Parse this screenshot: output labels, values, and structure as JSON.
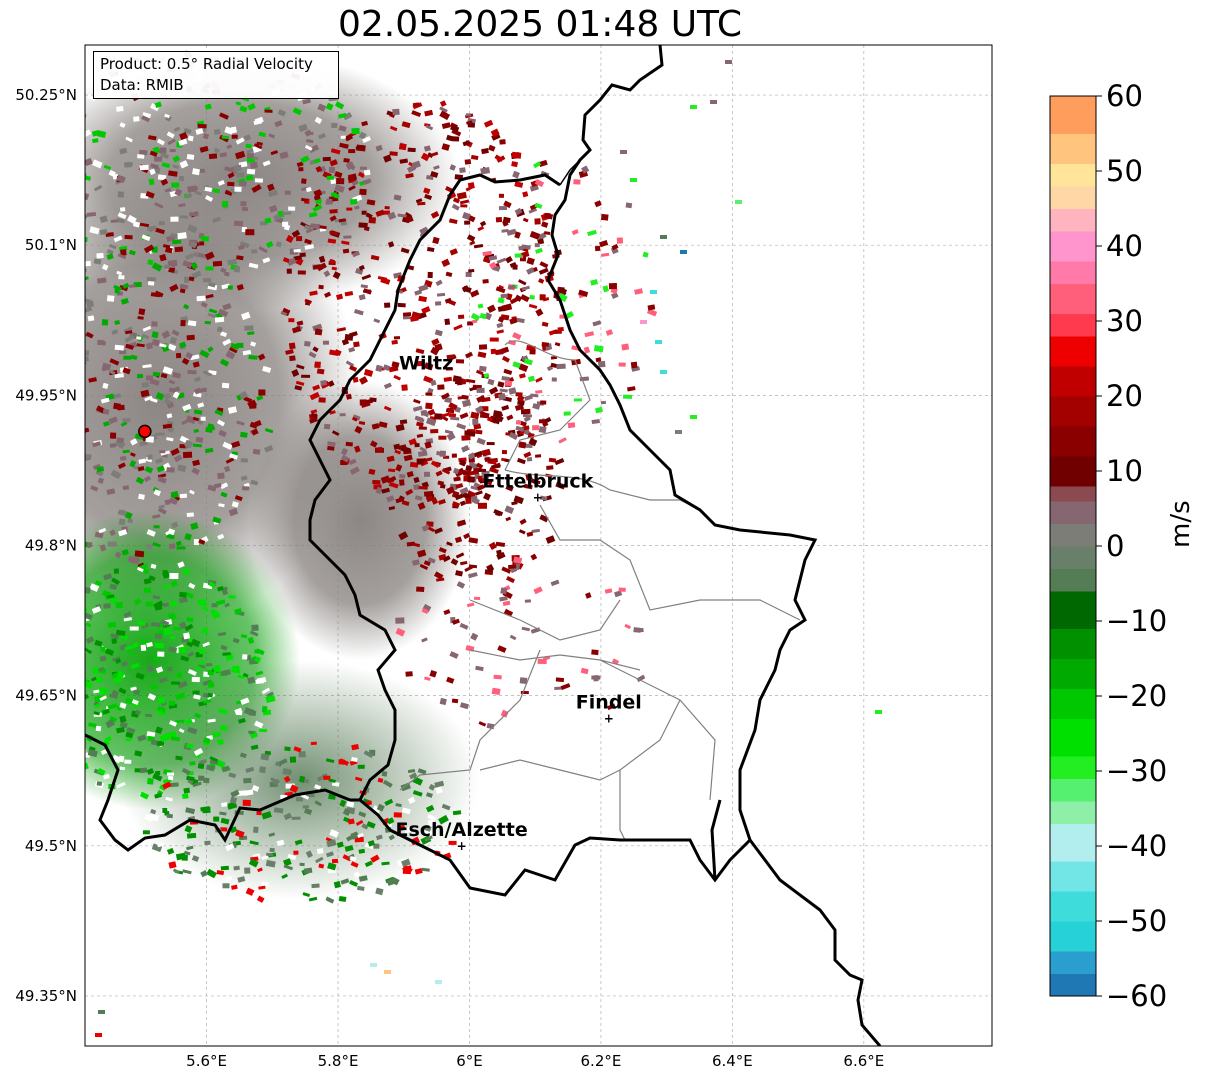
{
  "title": "02.05.2025 01:48 UTC",
  "info": {
    "product": "Product: 0.5° Radial Velocity",
    "data": "Data: RMIB"
  },
  "map": {
    "lon_range": [
      5.415,
      6.795
    ],
    "lat_range": [
      49.3,
      50.3
    ],
    "lon_ticks": [
      {
        "value": 5.6,
        "label": "5.6°E"
      },
      {
        "value": 5.8,
        "label": "5.8°E"
      },
      {
        "value": 6.0,
        "label": "6°E"
      },
      {
        "value": 6.2,
        "label": "6.2°E"
      },
      {
        "value": 6.4,
        "label": "6.4°E"
      },
      {
        "value": 6.6,
        "label": "6.6°E"
      }
    ],
    "lat_ticks": [
      {
        "value": 50.25,
        "label": "50.25°N"
      },
      {
        "value": 50.1,
        "label": "50.1°N"
      },
      {
        "value": 49.95,
        "label": "49.95°N"
      },
      {
        "value": 49.8,
        "label": "49.8°N"
      },
      {
        "value": 49.65,
        "label": "49.65°N"
      },
      {
        "value": 49.5,
        "label": "49.5°N"
      },
      {
        "value": 49.35,
        "label": "49.35°N"
      }
    ],
    "radar_site": {
      "lon": 5.506,
      "lat": 49.914,
      "color": "#ff0000"
    },
    "cities": [
      {
        "name": "Wiltz",
        "lon": 5.934,
        "lat": 49.966,
        "marker": false
      },
      {
        "name": "Ettelbruck",
        "lon": 6.104,
        "lat": 49.848,
        "marker": true
      },
      {
        "name": "Findel",
        "lon": 6.212,
        "lat": 49.627,
        "marker": true
      },
      {
        "name": "Esch/Alzette",
        "lon": 5.988,
        "lat": 49.5,
        "marker": true
      }
    ]
  },
  "colorbar": {
    "label": "m/s",
    "min": -60,
    "max": 60,
    "ticks": [
      {
        "value": 60,
        "label": "60"
      },
      {
        "value": 50,
        "label": "50"
      },
      {
        "value": 40,
        "label": "40"
      },
      {
        "value": 30,
        "label": "30"
      },
      {
        "value": 20,
        "label": "20"
      },
      {
        "value": 10,
        "label": "10"
      },
      {
        "value": 0,
        "label": "0"
      },
      {
        "value": -10,
        "label": "−10"
      },
      {
        "value": -20,
        "label": "−20"
      },
      {
        "value": -30,
        "label": "−30"
      },
      {
        "value": -40,
        "label": "−40"
      },
      {
        "value": -50,
        "label": "−50"
      },
      {
        "value": -60,
        "label": "−60"
      }
    ],
    "stops": [
      {
        "from": -60,
        "to": -57,
        "color": "#1f78b4"
      },
      {
        "from": -57,
        "to": -54,
        "color": "#2a9fcf"
      },
      {
        "from": -54,
        "to": -50,
        "color": "#26d2d8"
      },
      {
        "from": -50,
        "to": -46,
        "color": "#3fdcdc"
      },
      {
        "from": -46,
        "to": -42,
        "color": "#72e6e6"
      },
      {
        "from": -42,
        "to": -37,
        "color": "#b2eeee"
      },
      {
        "from": -37,
        "to": -34,
        "color": "#8ef0a8"
      },
      {
        "from": -34,
        "to": -31,
        "color": "#55f070"
      },
      {
        "from": -31,
        "to": -28,
        "color": "#22ee22"
      },
      {
        "from": -28,
        "to": -23,
        "color": "#00e000"
      },
      {
        "from": -23,
        "to": -19,
        "color": "#00c800"
      },
      {
        "from": -19,
        "to": -15,
        "color": "#00aa00"
      },
      {
        "from": -15,
        "to": -11,
        "color": "#009000"
      },
      {
        "from": -11,
        "to": -6,
        "color": "#006800"
      },
      {
        "from": -6,
        "to": -3,
        "color": "#557d55"
      },
      {
        "from": -3,
        "to": 0,
        "color": "#6a7f6a"
      },
      {
        "from": 0,
        "to": 3,
        "color": "#7d7d78"
      },
      {
        "from": 3,
        "to": 6,
        "color": "#866670"
      },
      {
        "from": 6,
        "to": 8,
        "color": "#8a4a4f"
      },
      {
        "from": 8,
        "to": 12,
        "color": "#700000"
      },
      {
        "from": 12,
        "to": 16,
        "color": "#8a0000"
      },
      {
        "from": 16,
        "to": 20,
        "color": "#a30000"
      },
      {
        "from": 20,
        "to": 24,
        "color": "#c00000"
      },
      {
        "from": 24,
        "to": 28,
        "color": "#ee0000"
      },
      {
        "from": 28,
        "to": 31,
        "color": "#ff3a4f"
      },
      {
        "from": 31,
        "to": 35,
        "color": "#ff5f7a"
      },
      {
        "from": 35,
        "to": 38,
        "color": "#ff7aa8"
      },
      {
        "from": 38,
        "to": 42,
        "color": "#ff95cc"
      },
      {
        "from": 42,
        "to": 45,
        "color": "#ffb4c0"
      },
      {
        "from": 45,
        "to": 48,
        "color": "#ffd6a6"
      },
      {
        "from": 48,
        "to": 51,
        "color": "#ffe49a"
      },
      {
        "from": 51,
        "to": 55,
        "color": "#ffc47e"
      },
      {
        "from": 55,
        "to": 60,
        "color": "#ff9d5c"
      }
    ]
  },
  "colors": {
    "border": "#000000",
    "canton_lines": "#808080",
    "grid": "#b0b0b0"
  }
}
